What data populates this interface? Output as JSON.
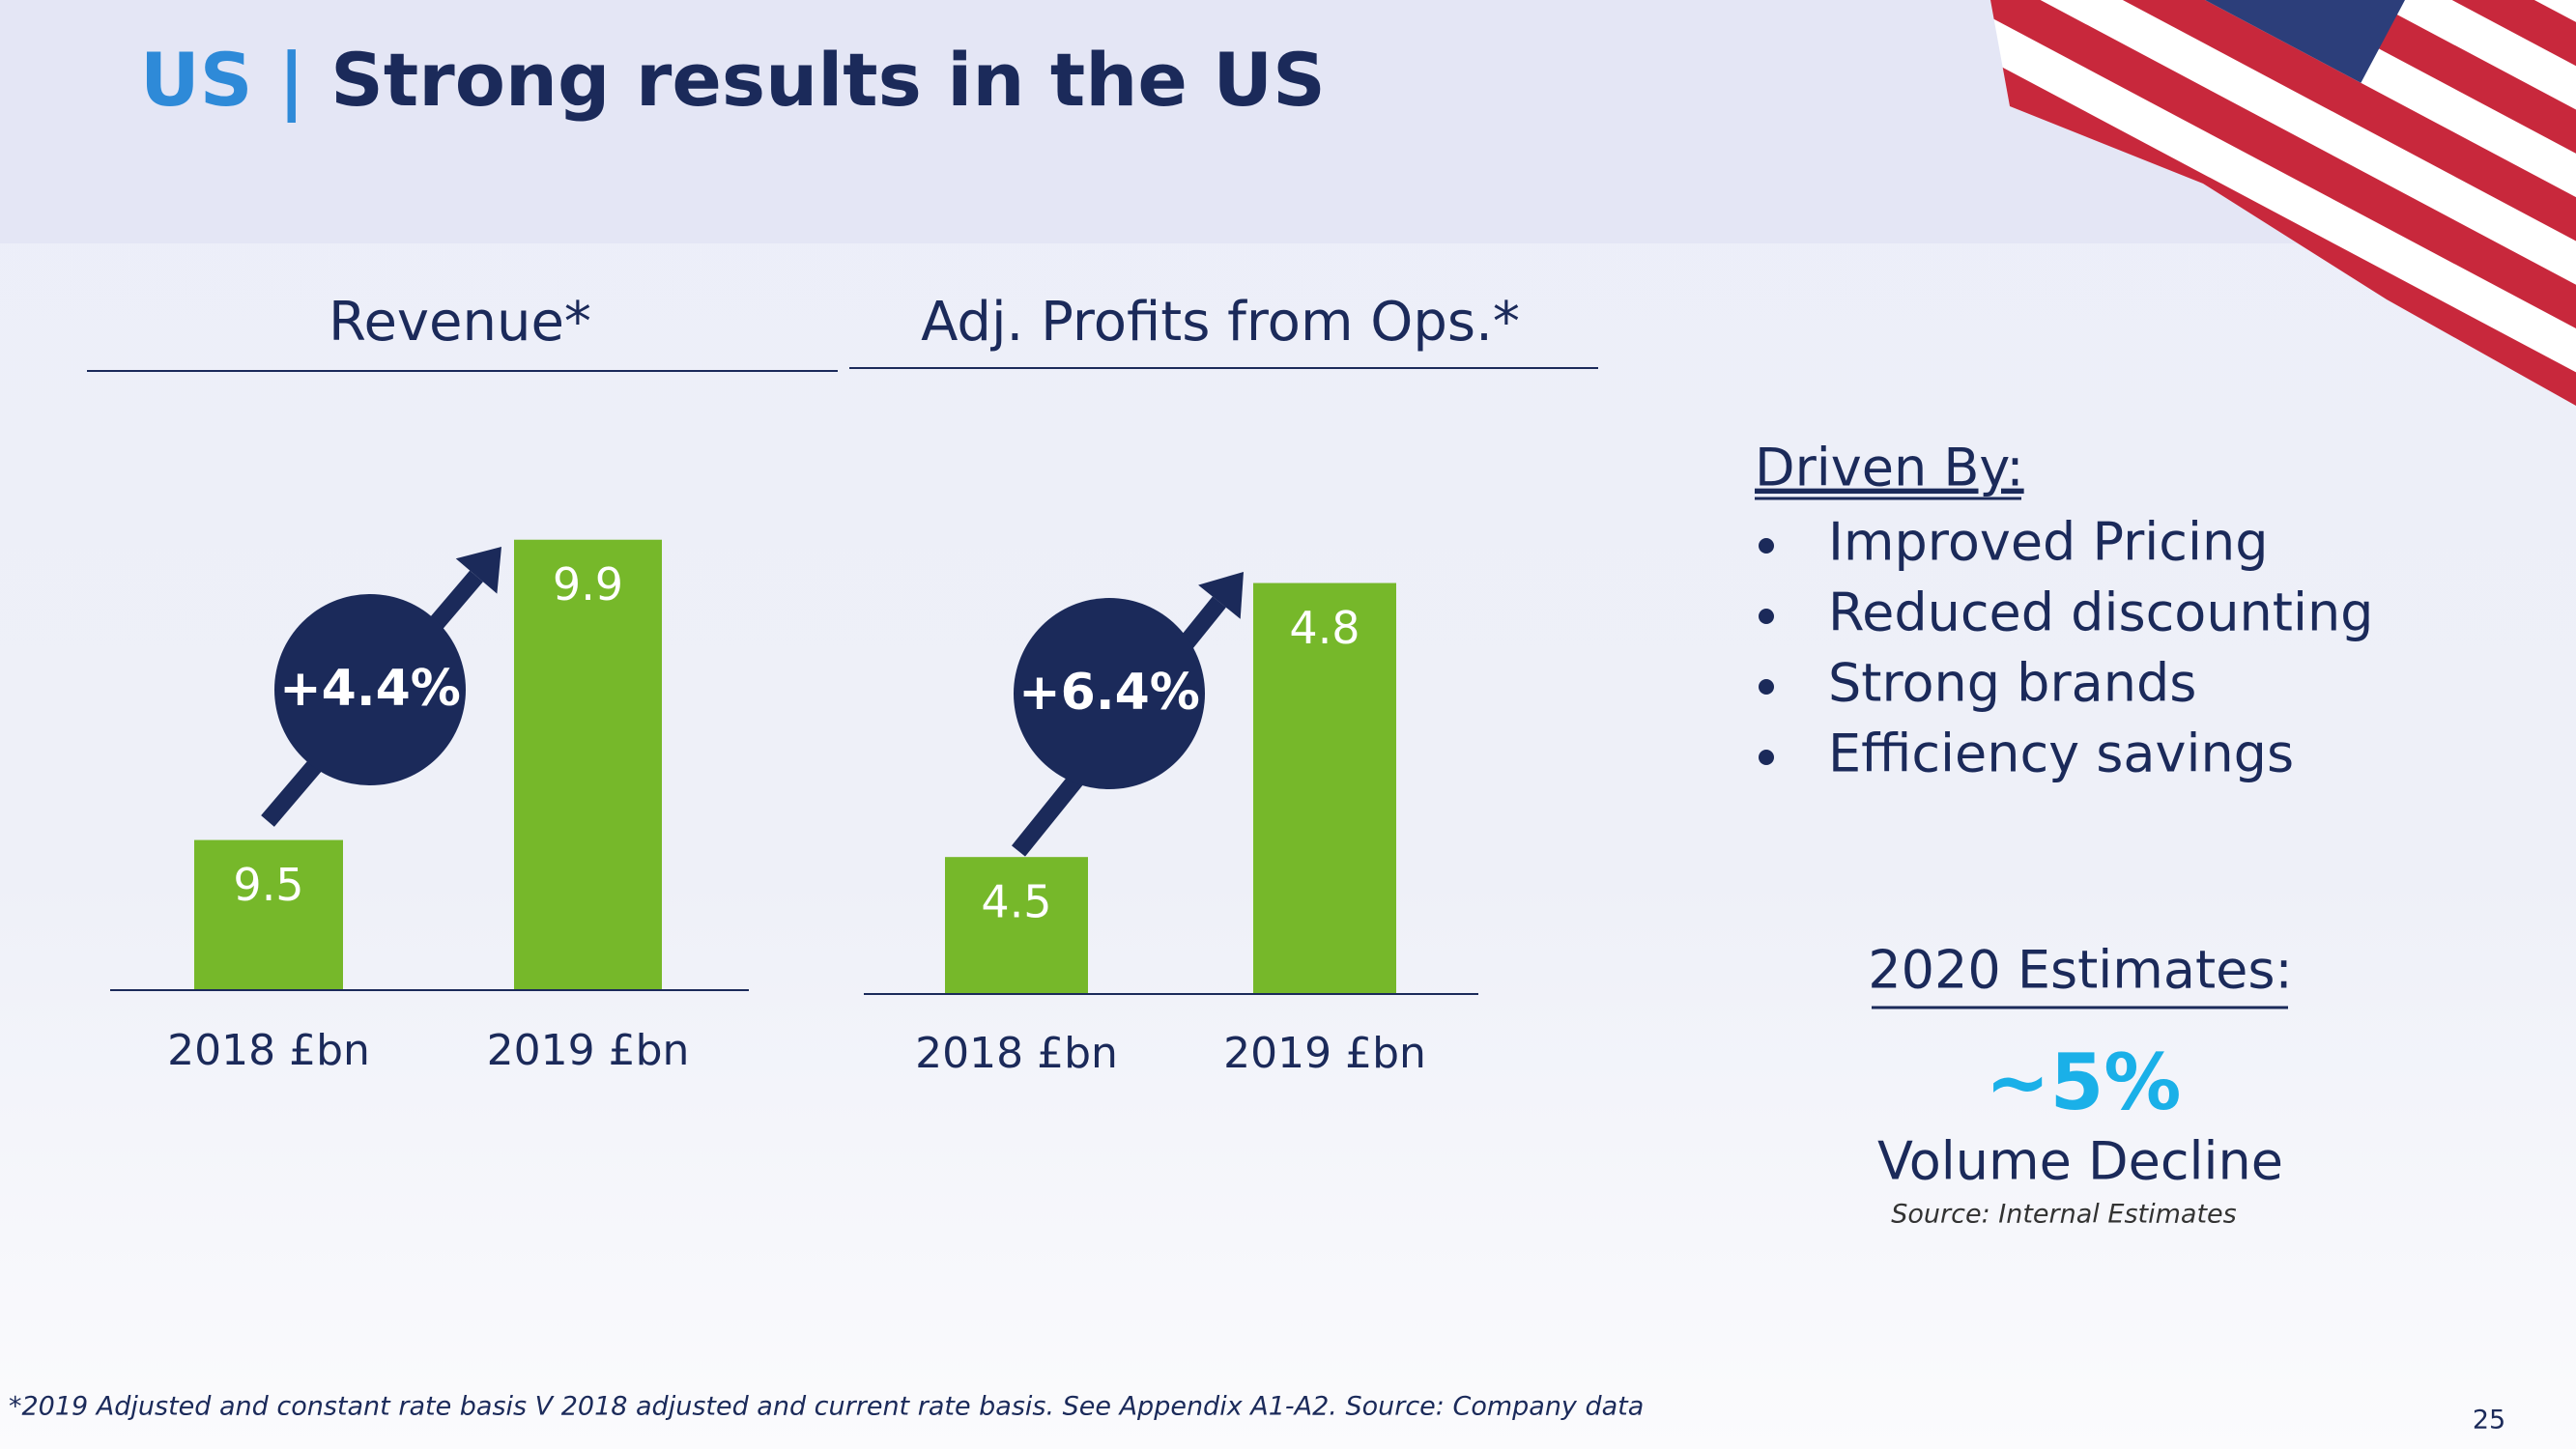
{
  "title": {
    "prefix": "US |",
    "text": "Strong results in the US"
  },
  "chart_data": [
    {
      "type": "bar",
      "title": "Revenue*",
      "categories": [
        "2018 £bn",
        "2019 £bn"
      ],
      "values": [
        9.5,
        9.9
      ],
      "color": "#76b82a",
      "ylim": [
        9.3,
        10.0
      ],
      "annotation": "+4.4%"
    },
    {
      "type": "bar",
      "title": "Adj. Profits from Ops.*",
      "categories": [
        "2018 £bn",
        "2019 £bn"
      ],
      "values": [
        4.5,
        4.8
      ],
      "color": "#76b82a",
      "ylim": [
        4.35,
        4.9
      ],
      "annotation": "+6.4%"
    }
  ],
  "drivers": {
    "heading": "Driven By:",
    "items": [
      "Improved Pricing",
      "Reduced discounting",
      "Strong brands",
      "Efficiency savings"
    ]
  },
  "estimates": {
    "heading": "2020 Estimates:",
    "value": "~5%",
    "label": "Volume Decline",
    "source": "Source: Internal Estimates"
  },
  "footnote": "*2019 Adjusted and constant rate basis V 2018 adjusted and current rate basis. See Appendix A1-A2. Source: Company data",
  "page_number": "25"
}
